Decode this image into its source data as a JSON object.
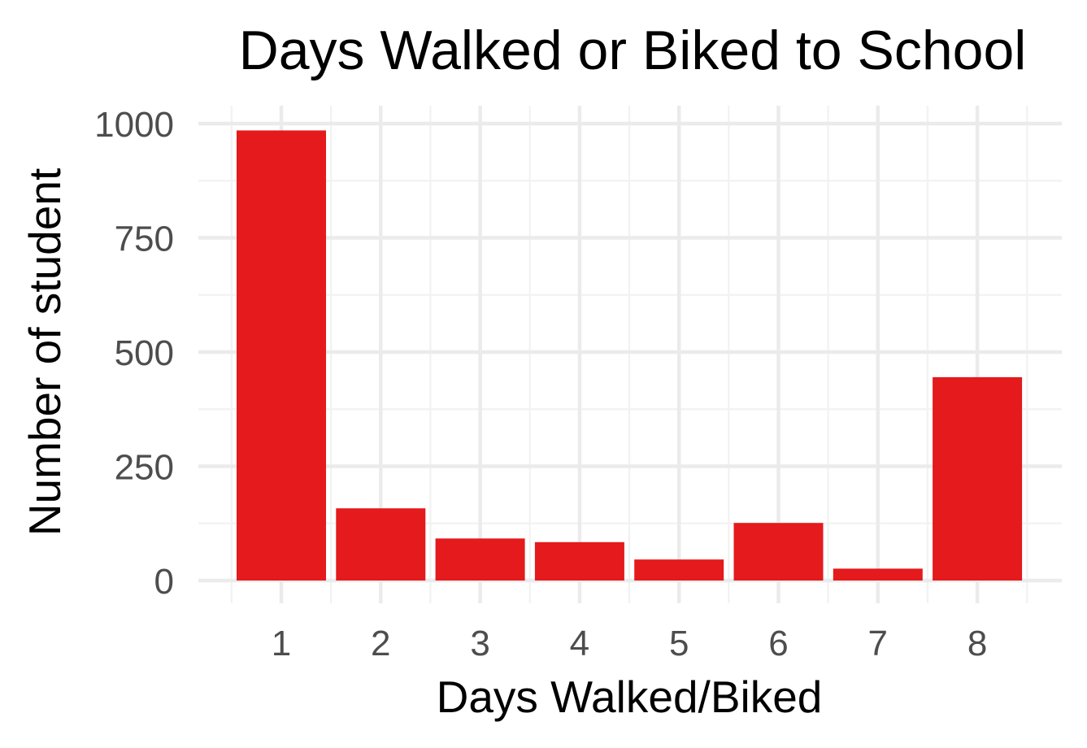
{
  "chart_data": {
    "type": "bar",
    "title": "Days Walked or Biked to School",
    "xlabel": "Days Walked/Biked",
    "ylabel": "Number of student",
    "categories": [
      "1",
      "2",
      "3",
      "4",
      "5",
      "6",
      "7",
      "8"
    ],
    "values": [
      985,
      158,
      92,
      84,
      46,
      126,
      26,
      445
    ],
    "y_ticks": [
      "0",
      "250",
      "500",
      "750",
      "1000"
    ],
    "ylim": [
      0,
      1000
    ],
    "bar_color": "#e41a1c",
    "grid": true,
    "legend": "none"
  }
}
